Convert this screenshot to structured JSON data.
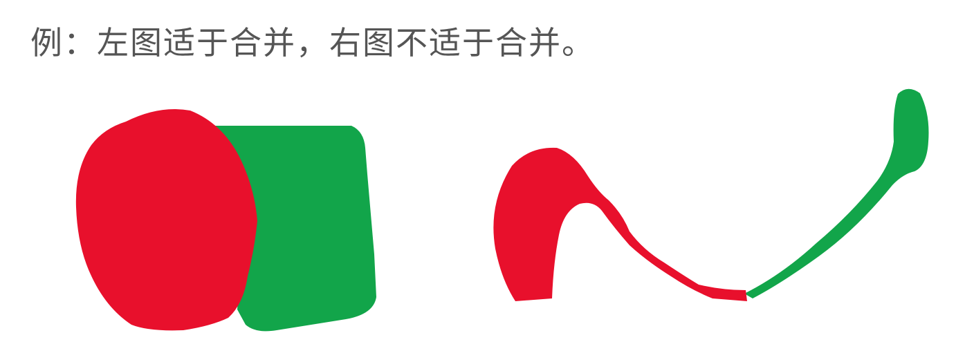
{
  "caption": "例：左图适于合并，右图不适于合并。",
  "colors": {
    "region_a": "#e8102c",
    "region_b": "#12a54a"
  }
}
